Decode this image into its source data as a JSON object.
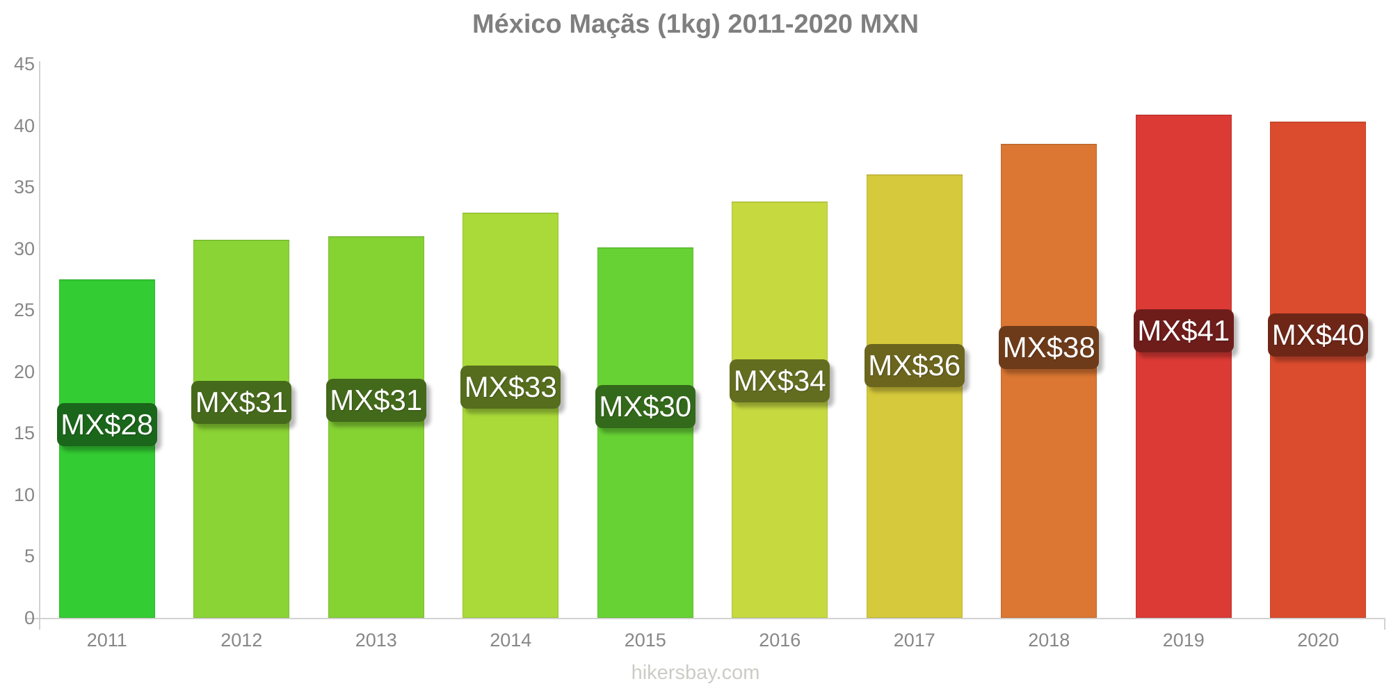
{
  "title": "México Maçãs (1kg) 2011-2020 MXN",
  "footer": "hikersbay.com",
  "colors": {
    "title_text": "#7f7f7f",
    "axis_line": "#d2d2d2",
    "tick_label_text": "#878787",
    "bar_label_text": "#ffffff",
    "footer_text": "#cbcdc5",
    "background": "#ffffff"
  },
  "chart_data": {
    "type": "bar",
    "title": "México Maçãs (1kg) 2011-2020 MXN",
    "xlabel": "",
    "ylabel": "",
    "currency": "MXN",
    "categories": [
      "2011",
      "2012",
      "2013",
      "2014",
      "2015",
      "2016",
      "2017",
      "2018",
      "2019",
      "2020"
    ],
    "values": [
      27.5,
      30.7,
      31.0,
      32.9,
      30.1,
      33.8,
      36.0,
      38.5,
      40.9,
      40.3
    ],
    "value_labels": [
      "MX$28",
      "MX$31",
      "MX$31",
      "MX$33",
      "MX$30",
      "MX$34",
      "MX$36",
      "MX$38",
      "MX$41",
      "MX$40"
    ],
    "bar_colors": [
      "#33CC33",
      "#8BD435",
      "#85D233",
      "#A9DA3A",
      "#66D234",
      "#C6DA40",
      "#D6C93B",
      "#DB7633",
      "#DB3A35",
      "#DB4C2E"
    ],
    "label_bg_colors": [
      "#1A661A",
      "#466A1B",
      "#43691A",
      "#556D1D",
      "#33691A",
      "#636D20",
      "#6B651E",
      "#6E3B1A",
      "#6E1D1B",
      "#6E2617"
    ],
    "ylim": [
      0,
      45
    ],
    "yticks": [
      0,
      5,
      10,
      15,
      20,
      25,
      30,
      35,
      40,
      45
    ],
    "grid": false,
    "legend": "none"
  }
}
